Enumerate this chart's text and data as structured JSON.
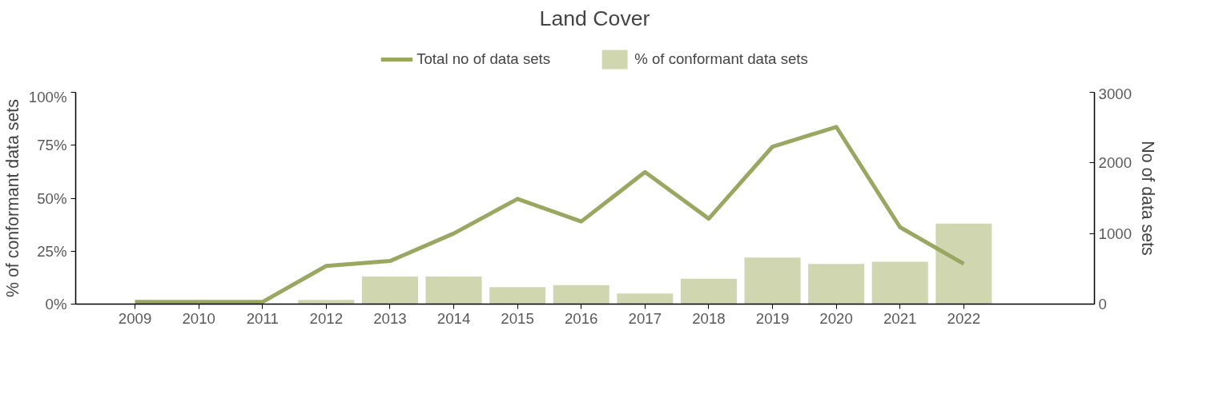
{
  "chart_data": {
    "type": "bar",
    "title": "Land Cover",
    "categories": [
      "2009",
      "2010",
      "2011",
      "2012",
      "2013",
      "2014",
      "2015",
      "2016",
      "2017",
      "2018",
      "2019",
      "2020",
      "2021",
      "2022"
    ],
    "series": [
      {
        "name": "Total no of data sets",
        "type": "line",
        "axis": "y2",
        "color": "#9aa760",
        "values": [
          30,
          30,
          30,
          540,
          610,
          1000,
          1490,
          1170,
          1870,
          1210,
          2230,
          2510,
          1090,
          570
        ]
      },
      {
        "name": "% of conformant data sets",
        "color": "#d0d6b0",
        "values": [
          null,
          null,
          null,
          2,
          13,
          13,
          8,
          9,
          5,
          12,
          22,
          19,
          20,
          38
        ]
      }
    ],
    "ylabel": "% of conformant data sets",
    "y2label": "No of data sets",
    "ylim": [
      0,
      100
    ],
    "yticks": [
      {
        "value": 0,
        "label": "0%"
      },
      {
        "value": 25,
        "label": "25%"
      },
      {
        "value": 50,
        "label": "50%"
      },
      {
        "value": 75,
        "label": "75%"
      },
      {
        "value": 100,
        "label": "100%"
      }
    ],
    "y2lim": [
      0,
      3000
    ],
    "y2ticks": [
      0,
      1000,
      2000,
      3000
    ],
    "grid": false,
    "legend": "top",
    "line_style": "solid",
    "marker": "none"
  }
}
